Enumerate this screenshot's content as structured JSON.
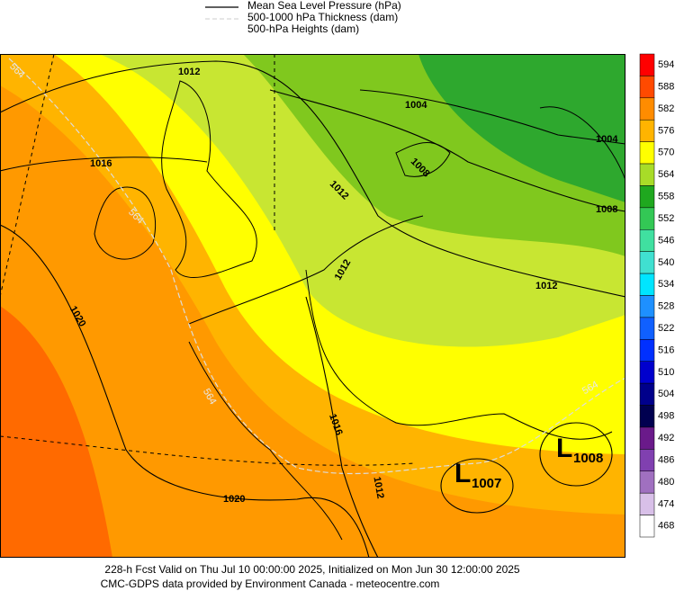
{
  "legend": {
    "items": [
      "Mean Sea Level Pressure (hPa)",
      "500-1000 hPa Thickness (dam)",
      "500-hPa Heights (dam)"
    ]
  },
  "colorbar": {
    "levels": [
      594,
      588,
      582,
      576,
      570,
      564,
      558,
      552,
      546,
      540,
      534,
      528,
      522,
      516,
      510,
      504,
      498,
      492,
      486,
      480,
      474,
      468
    ],
    "colors": [
      "#ff0000",
      "#ff4a00",
      "#ff8c00",
      "#ffb400",
      "#ffff00",
      "#a8dc28",
      "#1fa81f",
      "#33c855",
      "#40e0a0",
      "#40e0d0",
      "#00e5ff",
      "#1e90ff",
      "#1060ff",
      "#0030ff",
      "#0000cd",
      "#00008b",
      "#000050",
      "#6a1a8a",
      "#8040b0",
      "#a070c0",
      "#d8c0e8",
      "#ffffff"
    ]
  },
  "map": {
    "isobar_labels": [
      "1012",
      "1016",
      "1020",
      "1004",
      "1008",
      "1004",
      "1008",
      "1012",
      "1012",
      "1016",
      "1020",
      "1012",
      "1012"
    ],
    "thickness_labels": [
      "564",
      "564",
      "564",
      "564"
    ],
    "lows": [
      {
        "symbol": "L",
        "pressure": "1007"
      },
      {
        "symbol": "L",
        "pressure": "1008"
      }
    ]
  },
  "footer": {
    "line1": "228-h Fcst Valid on Thu Jul 10 00:00:00 2025, Initialized on Mon Jun 30 12:00:00 2025",
    "line2": "CMC-GDPS data provided by Environment Canada - meteocentre.com"
  }
}
